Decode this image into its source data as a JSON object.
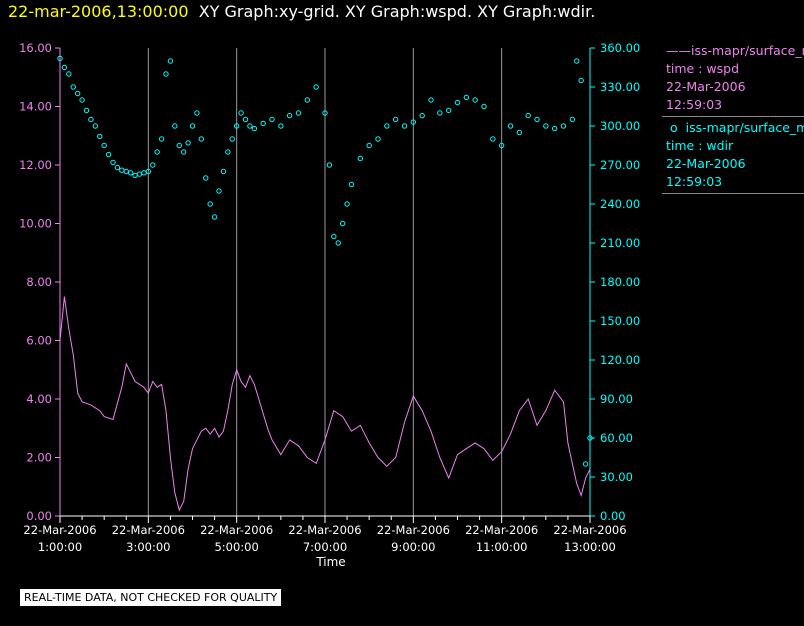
{
  "header": {
    "datetime": "22-mar-2006,13:00:00",
    "graphs": "XY Graph:xy-grid.  XY Graph:wspd.  XY Graph:wdir."
  },
  "legend": [
    {
      "symbol": "——",
      "source": "iss-mapr/surface_m",
      "variable": "time : wspd",
      "date": "22-Mar-2006",
      "time": "12:59:03",
      "color": "#ee82ee"
    },
    {
      "symbol": "o",
      "source": "iss-mapr/surface_m",
      "variable": "time : wdir",
      "date": "22-Mar-2006",
      "time": "12:59:03",
      "color": "#00ffff"
    }
  ],
  "footer": {
    "note": "REAL-TIME DATA, NOT CHECKED FOR QUALITY"
  },
  "chart_data": {
    "type": "line",
    "xlabel": "Time",
    "x_range_hours": [
      1.0,
      13.0
    ],
    "x_ticks": [
      {
        "hour": 1,
        "date": "22-Mar-2006",
        "time": "1:00:00"
      },
      {
        "hour": 3,
        "date": "22-Mar-2006",
        "time": "3:00:00"
      },
      {
        "hour": 5,
        "date": "22-Mar-2006",
        "time": "5:00:00"
      },
      {
        "hour": 7,
        "date": "22-Mar-2006",
        "time": "7:00:00"
      },
      {
        "hour": 9,
        "date": "22-Mar-2006",
        "time": "9:00:00"
      },
      {
        "hour": 11,
        "date": "22-Mar-2006",
        "time": "11:00:00"
      },
      {
        "hour": 13,
        "date": "22-Mar-2006",
        "time": "13:00:00"
      }
    ],
    "grid": "vertical",
    "axes": {
      "left": {
        "ylim": [
          0,
          16
        ],
        "ticks": [
          "0.00",
          "2.00",
          "4.00",
          "6.00",
          "8.00",
          "10.00",
          "12.00",
          "14.00",
          "16.00"
        ],
        "color": "#ee82ee"
      },
      "right": {
        "ylim": [
          0,
          360
        ],
        "ticks": [
          "0.00",
          "30.00",
          "60.00",
          "90.00",
          "120.00",
          "150.00",
          "180.00",
          "210.00",
          "240.00",
          "270.00",
          "300.00",
          "330.00",
          "360.00"
        ],
        "color": "#00ffff"
      }
    },
    "series": [
      {
        "axis": "left",
        "style": "line",
        "color": "#ee82ee",
        "x": [
          1.0,
          1.1,
          1.2,
          1.3,
          1.4,
          1.5,
          1.7,
          1.9,
          2.0,
          2.2,
          2.4,
          2.5,
          2.6,
          2.7,
          2.8,
          2.9,
          3.0,
          3.1,
          3.2,
          3.3,
          3.4,
          3.5,
          3.6,
          3.7,
          3.8,
          3.9,
          4.0,
          4.2,
          4.3,
          4.4,
          4.5,
          4.6,
          4.7,
          4.8,
          4.9,
          5.0,
          5.1,
          5.2,
          5.3,
          5.4,
          5.5,
          5.6,
          5.7,
          5.8,
          6.0,
          6.2,
          6.4,
          6.6,
          6.8,
          7.0,
          7.2,
          7.4,
          7.6,
          7.8,
          8.0,
          8.2,
          8.4,
          8.6,
          8.8,
          9.0,
          9.2,
          9.4,
          9.6,
          9.8,
          10.0,
          10.2,
          10.4,
          10.6,
          10.8,
          11.0,
          11.2,
          11.4,
          11.6,
          11.8,
          12.0,
          12.2,
          12.4,
          12.5,
          12.6,
          12.7,
          12.8,
          12.9,
          13.0
        ],
        "y": [
          6.0,
          7.5,
          6.4,
          5.5,
          4.2,
          3.9,
          3.8,
          3.6,
          3.4,
          3.3,
          4.4,
          5.2,
          4.9,
          4.6,
          4.5,
          4.4,
          4.2,
          4.6,
          4.4,
          4.5,
          3.6,
          2.0,
          0.8,
          0.2,
          0.5,
          1.6,
          2.3,
          2.9,
          3.0,
          2.8,
          3.0,
          2.7,
          2.9,
          3.6,
          4.5,
          5.0,
          4.6,
          4.4,
          4.8,
          4.5,
          4.0,
          3.5,
          3.0,
          2.6,
          2.1,
          2.6,
          2.4,
          2.0,
          1.8,
          2.6,
          3.6,
          3.4,
          2.9,
          3.1,
          2.5,
          2.0,
          1.7,
          2.0,
          3.2,
          4.1,
          3.6,
          2.9,
          2.0,
          1.3,
          2.1,
          2.3,
          2.5,
          2.3,
          1.9,
          2.2,
          2.8,
          3.6,
          4.0,
          3.1,
          3.6,
          4.3,
          3.9,
          2.5,
          1.8,
          1.1,
          0.7,
          1.3,
          1.6
        ]
      },
      {
        "axis": "right",
        "style": "points",
        "color": "#00ffff",
        "x": [
          1.0,
          1.1,
          1.2,
          1.3,
          1.4,
          1.5,
          1.6,
          1.7,
          1.8,
          1.9,
          2.0,
          2.1,
          2.2,
          2.3,
          2.4,
          2.5,
          2.6,
          2.7,
          2.8,
          2.9,
          3.0,
          3.1,
          3.2,
          3.3,
          3.4,
          3.5,
          3.6,
          3.7,
          3.8,
          3.9,
          4.0,
          4.1,
          4.2,
          4.3,
          4.4,
          4.5,
          4.6,
          4.7,
          4.8,
          4.9,
          5.0,
          5.1,
          5.2,
          5.3,
          5.4,
          5.6,
          5.8,
          6.0,
          6.2,
          6.4,
          6.6,
          6.8,
          7.0,
          7.1,
          7.2,
          7.3,
          7.4,
          7.5,
          7.6,
          7.8,
          8.0,
          8.2,
          8.4,
          8.6,
          8.8,
          9.0,
          9.2,
          9.4,
          9.6,
          9.8,
          10.0,
          10.2,
          10.4,
          10.6,
          10.8,
          11.0,
          11.2,
          11.4,
          11.6,
          11.8,
          12.0,
          12.2,
          12.4,
          12.6,
          12.7,
          12.8,
          12.9,
          13.0
        ],
        "y": [
          352,
          345,
          340,
          330,
          325,
          320,
          312,
          305,
          300,
          292,
          285,
          278,
          272,
          268,
          266,
          265,
          264,
          262,
          263,
          264,
          265,
          270,
          280,
          290,
          340,
          350,
          300,
          285,
          280,
          287,
          300,
          310,
          290,
          260,
          240,
          230,
          250,
          265,
          280,
          290,
          300,
          310,
          305,
          300,
          298,
          302,
          305,
          300,
          308,
          310,
          320,
          330,
          310,
          270,
          215,
          210,
          225,
          240,
          255,
          275,
          285,
          290,
          300,
          305,
          300,
          303,
          308,
          320,
          310,
          312,
          318,
          322,
          320,
          315,
          290,
          285,
          300,
          295,
          308,
          305,
          300,
          298,
          300,
          305,
          350,
          335,
          40,
          60
        ]
      }
    ]
  }
}
